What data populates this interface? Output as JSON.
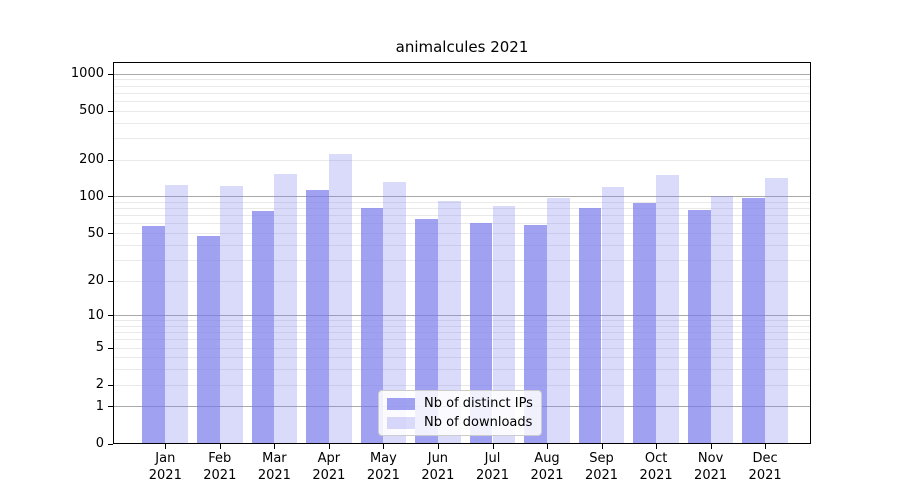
{
  "chart_data": {
    "type": "bar",
    "title": "animalcules 2021",
    "categories": [
      {
        "month": "Jan",
        "year": "2021"
      },
      {
        "month": "Feb",
        "year": "2021"
      },
      {
        "month": "Mar",
        "year": "2021"
      },
      {
        "month": "Apr",
        "year": "2021"
      },
      {
        "month": "May",
        "year": "2021"
      },
      {
        "month": "Jun",
        "year": "2021"
      },
      {
        "month": "Jul",
        "year": "2021"
      },
      {
        "month": "Aug",
        "year": "2021"
      },
      {
        "month": "Sep",
        "year": "2021"
      },
      {
        "month": "Oct",
        "year": "2021"
      },
      {
        "month": "Nov",
        "year": "2021"
      },
      {
        "month": "Dec",
        "year": "2021"
      }
    ],
    "series": [
      {
        "name": "Nb of distinct IPs",
        "values": [
          57,
          47,
          76,
          114,
          80,
          65,
          60,
          58,
          80,
          88,
          77,
          98
        ],
        "color": "rgba(121, 121, 237, 0.70)"
      },
      {
        "name": "Nb of downloads",
        "values": [
          124,
          121,
          154,
          224,
          131,
          92,
          84,
          97,
          120,
          151,
          100,
          142
        ],
        "color": "rgba(121, 121, 237, 0.28)"
      }
    ],
    "y_scale": "log10(1+v)",
    "ylim": [
      0,
      1243
    ],
    "y_ticks": [
      0,
      1,
      2,
      5,
      10,
      20,
      50,
      100,
      200,
      500,
      1000
    ],
    "y_major_gridlines": [
      1,
      10,
      100,
      1000
    ],
    "y_minor_gridlines": [
      2,
      3,
      4,
      5,
      6,
      7,
      8,
      9,
      20,
      30,
      40,
      50,
      60,
      70,
      80,
      90,
      200,
      300,
      400,
      500,
      600,
      700,
      800,
      900
    ],
    "grid": true,
    "legend_position": "bottom-center",
    "xlabel": "",
    "ylabel": ""
  },
  "legend": {
    "items": [
      {
        "label": "Nb of distinct IPs"
      },
      {
        "label": "Nb of downloads"
      }
    ]
  },
  "colors": {
    "bar_distinct_ips": "rgba(121, 121, 237, 0.70)",
    "bar_downloads": "rgba(121, 121, 237, 0.28)",
    "grid_major": "#a9a9a9",
    "grid_minor": "#e9e9e9",
    "axis": "#000000",
    "text": "#000000",
    "legend_border": "#cccccc"
  }
}
